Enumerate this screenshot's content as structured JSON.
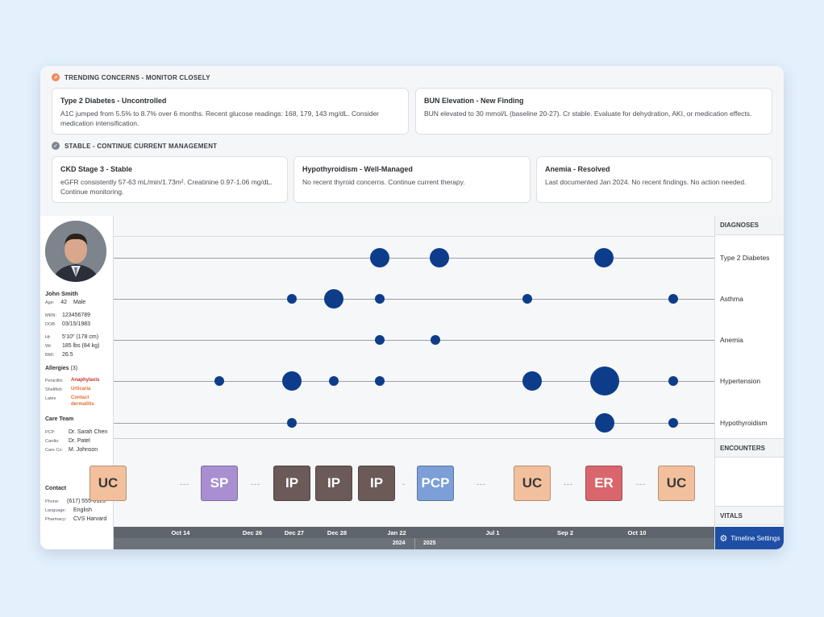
{
  "trending": {
    "header": "TRENDING CONCERNS - MONITOR CLOSELY",
    "icon": "trend-up-icon",
    "items": [
      {
        "title": "Type 2 Diabetes - Uncontrolled",
        "desc": "A1C jumped from 5.5% to 8.7% over 6 months. Recent glucose readings: 168, 179, 143 mg/dL. Consider medication intensification."
      },
      {
        "title": "BUN Elevation - New Finding",
        "desc": "BUN elevated to 30 mmol/L (baseline 20-27). Cr stable. Evaluate for dehydration, AKI, or medication effects."
      }
    ]
  },
  "stable": {
    "header": "STABLE - CONTINUE CURRENT MANAGEMENT",
    "icon": "check-circle-icon",
    "items": [
      {
        "title": "CKD Stage 3 - Stable",
        "desc": "eGFR consistently 57-63 mL/min/1.73m². Creatinine 0.97-1.06 mg/dL. Continue monitoring."
      },
      {
        "title": "Hypothyroidism - Well-Managed",
        "desc": "No recent thyroid concerns. Continue current therapy."
      },
      {
        "title": "Anemia - Resolved",
        "desc": "Last documented Jan 2024. No recent findings. No action needed."
      }
    ]
  },
  "patient": {
    "name": "John Smith",
    "age_label": "Age:",
    "age": "42",
    "sex": "Male",
    "mrn_label": "MRN:",
    "mrn": "123456789",
    "dob_label": "DOB:",
    "dob": "03/15/1983",
    "ht_label": "Ht:",
    "ht": "5'10\" (178 cm)",
    "wt_label": "Wt:",
    "wt": "185 lbs (84 kg)",
    "bmi_label": "BMI:",
    "bmi": "26.5",
    "allergies_title": "Allergies",
    "allergies_count": "(3)",
    "allergies": [
      {
        "name": "Penicillin",
        "reaction": "Anaphylaxis"
      },
      {
        "name": "Shellfish",
        "reaction": "Urticaria"
      },
      {
        "name": "Latex",
        "reaction": "Contact",
        "reaction2": "dermatitis"
      }
    ],
    "care_title": "Care Team",
    "care": [
      {
        "role": "PCP:",
        "name": "Dr. Sarah Chen"
      },
      {
        "role": "Cardio:",
        "name": "Dr. Patel"
      },
      {
        "role": "Care Co:",
        "name": "M. Johnson"
      }
    ],
    "contact_title": "Contact",
    "phone_label": "Phone:",
    "phone": "(617) 555-0123",
    "language_label": "Language:",
    "language": "English",
    "pharmacy_label": "Pharmacy:",
    "pharmacy": "CVS Harvard"
  },
  "right": {
    "diagnoses_header": "DIAGNOSES",
    "encounters_header": "ENCOUNTERS",
    "vitals_header": "VITALS",
    "settings_label": "Timeline Settings",
    "settings_icon": "gear-icon"
  },
  "diagnoses": [
    "Type 2 Diabetes",
    "Asthma",
    "Anemia",
    "Hypertension",
    "Hypothyroidism"
  ],
  "encounters": [
    {
      "code": "UC",
      "color": "#f2c09c",
      "text_color": "#3a3a3a"
    },
    {
      "code": "SP",
      "color": "#a98fd2",
      "text_color": "#ffffff"
    },
    {
      "code": "IP",
      "color": "#6b5a58",
      "text_color": "#ffffff"
    },
    {
      "code": "IP",
      "color": "#6b5a58",
      "text_color": "#ffffff"
    },
    {
      "code": "IP",
      "color": "#6b5a58",
      "text_color": "#ffffff"
    },
    {
      "code": "PCP",
      "color": "#7b9fd6",
      "text_color": "#ffffff"
    },
    {
      "code": "UC",
      "color": "#f2c09c",
      "text_color": "#3a3a3a"
    },
    {
      "code": "ER",
      "color": "#d9666d",
      "text_color": "#ffffff"
    },
    {
      "code": "UC",
      "color": "#f2c09c",
      "text_color": "#3a3a3a"
    }
  ],
  "dashes": [
    "---",
    "---",
    "-",
    "---",
    "---",
    "---",
    "---",
    "---"
  ],
  "dates": [
    "Oct 14",
    "Dec 26",
    "Dec 27",
    "Dec 28",
    "Jan 22",
    "Jul 1",
    "Sep 2",
    "Oct 10"
  ],
  "years": [
    "2024",
    "2025"
  ],
  "colors": {
    "bubble": "#0d3d8a",
    "accent": "#1e4fa5"
  }
}
